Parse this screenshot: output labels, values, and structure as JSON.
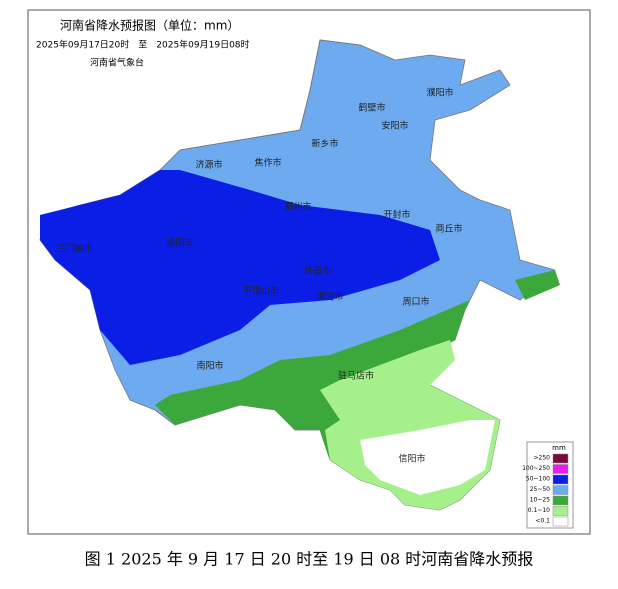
{
  "header": {
    "title": "河南省降水预报图（单位：mm）",
    "time_range": "2025年09月17日20时　至　2025年09月19日08时",
    "agency": "河南省气象台"
  },
  "cities": [
    {
      "label": "濮阳市"
    },
    {
      "label": "鹤壁市"
    },
    {
      "label": "安阳市"
    },
    {
      "label": "新乡市"
    },
    {
      "label": "济源市"
    },
    {
      "label": "焦作市"
    },
    {
      "label": "郑州市"
    },
    {
      "label": "开封市"
    },
    {
      "label": "商丘市"
    },
    {
      "label": "三门峡市"
    },
    {
      "label": "洛阳市"
    },
    {
      "label": "许昌市"
    },
    {
      "label": "平顶山市"
    },
    {
      "label": "漯河市"
    },
    {
      "label": "周口市"
    },
    {
      "label": "南阳市"
    },
    {
      "label": "驻马店市"
    },
    {
      "label": "信阳市"
    }
  ],
  "legend": {
    "unit": "mm",
    "items": [
      {
        "label": ">250",
        "color": "#7a0a3c"
      },
      {
        "label": "100~250",
        "color": "#e81ee8"
      },
      {
        "label": "50~100",
        "color": "#0a1ee6"
      },
      {
        "label": "25~50",
        "color": "#6eaaf0"
      },
      {
        "label": "10~25",
        "color": "#3ca83c"
      },
      {
        "label": "0.1~10",
        "color": "#a6f08c"
      },
      {
        "label": "<0.1",
        "color": "#ffffff"
      }
    ]
  },
  "caption": "图 1 2025 年 9 月 17 日 20 时至 19 日 08 时河南省降水预报"
}
